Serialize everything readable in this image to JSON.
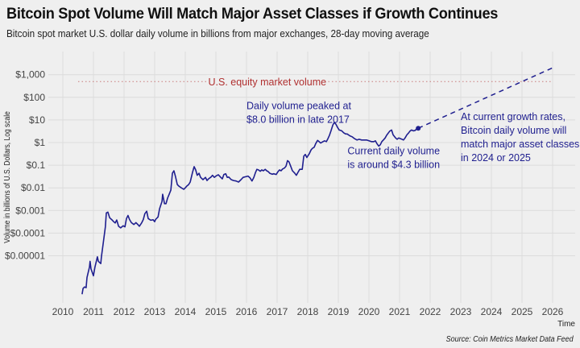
{
  "title": "Bitcoin Spot Volume Will Match Major Asset Classes if Growth Continues",
  "subtitle": "Bitcoin spot market U.S. dollar daily volume in billions from major exchanges, 28-day moving average",
  "source": "Source: Coin Metrics Market Data Feed",
  "colors": {
    "series": "#1f1f8f",
    "equity_line": "#b03030",
    "grid": "#dcdcdc",
    "background": "#efefef"
  },
  "chart_data": {
    "type": "line",
    "title": "Bitcoin Spot Volume Will Match Major Asset Classes if Growth Continues",
    "xlabel": "Time",
    "ylabel": "Volume in billions of U.S. Dollars, Log scale",
    "yscale": "log",
    "xlim": [
      2009.7,
      2026.7
    ],
    "ylim": [
      1e-07,
      5000
    ],
    "grid": true,
    "x_ticks": [
      "2010",
      "2011",
      "2012",
      "2013",
      "2014",
      "2015",
      "2016",
      "2017",
      "2018",
      "2019",
      "2020",
      "2021",
      "2022",
      "2023",
      "2024",
      "2025",
      "2026"
    ],
    "y_ticks": [
      {
        "value": 1000,
        "label": "$1,000"
      },
      {
        "value": 100,
        "label": "$100"
      },
      {
        "value": 10,
        "label": "$10"
      },
      {
        "value": 1,
        "label": "$1"
      },
      {
        "value": 0.1,
        "label": "$0.1"
      },
      {
        "value": 0.01,
        "label": "$0.01"
      },
      {
        "value": 0.001,
        "label": "$0.001"
      },
      {
        "value": 0.0001,
        "label": "$0.0001"
      },
      {
        "value": 1e-05,
        "label": "$0.00001"
      }
    ],
    "series": [
      {
        "name": "Bitcoin daily spot volume (28-day MA)",
        "style": "solid",
        "points": [
          [
            2010.63,
            2e-07
          ],
          [
            2010.66,
            3.6e-07
          ],
          [
            2010.71,
            4.2e-07
          ],
          [
            2010.76,
            3.9e-07
          ],
          [
            2010.79,
            1.1e-06
          ],
          [
            2010.87,
            3.2e-06
          ],
          [
            2010.89,
            5.7e-06
          ],
          [
            2010.92,
            2.6e-06
          ],
          [
            2011.0,
            1.3e-06
          ],
          [
            2011.05,
            3.2e-06
          ],
          [
            2011.13,
            9e-06
          ],
          [
            2011.16,
            5.7e-06
          ],
          [
            2011.24,
            4.5e-06
          ],
          [
            2011.26,
            9e-06
          ],
          [
            2011.32,
            3.7e-05
          ],
          [
            2011.39,
            0.00019
          ],
          [
            2011.42,
            0.00078
          ],
          [
            2011.47,
            0.00085
          ],
          [
            2011.53,
            0.00048
          ],
          [
            2011.61,
            0.00038
          ],
          [
            2011.66,
            0.00032
          ],
          [
            2011.71,
            0.00028
          ],
          [
            2011.76,
            0.00038
          ],
          [
            2011.82,
            0.0002
          ],
          [
            2011.89,
            0.00017
          ],
          [
            2011.97,
            0.00021
          ],
          [
            2012.03,
            0.00019
          ],
          [
            2012.08,
            0.00044
          ],
          [
            2012.13,
            0.0006
          ],
          [
            2012.18,
            0.0004
          ],
          [
            2012.24,
            0.00029
          ],
          [
            2012.32,
            0.00024
          ],
          [
            2012.39,
            0.00029
          ],
          [
            2012.45,
            0.00024
          ],
          [
            2012.5,
            0.0002
          ],
          [
            2012.58,
            0.00029
          ],
          [
            2012.63,
            0.0004
          ],
          [
            2012.68,
            0.00072
          ],
          [
            2012.74,
            0.00093
          ],
          [
            2012.79,
            0.00044
          ],
          [
            2012.87,
            0.00037
          ],
          [
            2012.95,
            0.00039
          ],
          [
            2013.0,
            0.00032
          ],
          [
            2013.03,
            0.0004
          ],
          [
            2013.11,
            0.00052
          ],
          [
            2013.16,
            0.0012
          ],
          [
            2013.24,
            0.0025
          ],
          [
            2013.26,
            0.0052
          ],
          [
            2013.32,
            0.002
          ],
          [
            2013.37,
            0.002
          ],
          [
            2013.42,
            0.0035
          ],
          [
            2013.47,
            0.0051
          ],
          [
            2013.53,
            0.008
          ],
          [
            2013.58,
            0.044
          ],
          [
            2013.63,
            0.057
          ],
          [
            2013.68,
            0.032
          ],
          [
            2013.74,
            0.014
          ],
          [
            2013.79,
            0.012
          ],
          [
            2013.87,
            0.01
          ],
          [
            2013.95,
            0.0086
          ],
          [
            2014.0,
            0.01
          ],
          [
            2014.05,
            0.012
          ],
          [
            2014.11,
            0.014
          ],
          [
            2014.16,
            0.018
          ],
          [
            2014.24,
            0.05
          ],
          [
            2014.29,
            0.086
          ],
          [
            2014.34,
            0.062
          ],
          [
            2014.39,
            0.036
          ],
          [
            2014.45,
            0.044
          ],
          [
            2014.5,
            0.029
          ],
          [
            2014.58,
            0.023
          ],
          [
            2014.66,
            0.029
          ],
          [
            2014.71,
            0.021
          ],
          [
            2014.76,
            0.025
          ],
          [
            2014.84,
            0.03
          ],
          [
            2014.89,
            0.036
          ],
          [
            2014.95,
            0.029
          ],
          [
            2015.0,
            0.033
          ],
          [
            2015.08,
            0.038
          ],
          [
            2015.16,
            0.029
          ],
          [
            2015.21,
            0.025
          ],
          [
            2015.26,
            0.039
          ],
          [
            2015.32,
            0.042
          ],
          [
            2015.37,
            0.029
          ],
          [
            2015.42,
            0.03
          ],
          [
            2015.5,
            0.023
          ],
          [
            2015.58,
            0.021
          ],
          [
            2015.66,
            0.02
          ],
          [
            2015.74,
            0.018
          ],
          [
            2015.82,
            0.023
          ],
          [
            2015.89,
            0.029
          ],
          [
            2015.97,
            0.031
          ],
          [
            2016.05,
            0.033
          ],
          [
            2016.11,
            0.028
          ],
          [
            2016.18,
            0.02
          ],
          [
            2016.24,
            0.029
          ],
          [
            2016.29,
            0.046
          ],
          [
            2016.34,
            0.066
          ],
          [
            2016.39,
            0.062
          ],
          [
            2016.45,
            0.054
          ],
          [
            2016.5,
            0.062
          ],
          [
            2016.55,
            0.057
          ],
          [
            2016.61,
            0.066
          ],
          [
            2016.66,
            0.057
          ],
          [
            2016.71,
            0.052
          ],
          [
            2016.76,
            0.044
          ],
          [
            2016.84,
            0.04
          ],
          [
            2016.89,
            0.042
          ],
          [
            2016.97,
            0.039
          ],
          [
            2017.03,
            0.052
          ],
          [
            2017.08,
            0.062
          ],
          [
            2017.13,
            0.057
          ],
          [
            2017.18,
            0.068
          ],
          [
            2017.24,
            0.075
          ],
          [
            2017.29,
            0.09
          ],
          [
            2017.34,
            0.16
          ],
          [
            2017.39,
            0.14
          ],
          [
            2017.45,
            0.086
          ],
          [
            2017.5,
            0.057
          ],
          [
            2017.58,
            0.044
          ],
          [
            2017.63,
            0.036
          ],
          [
            2017.68,
            0.048
          ],
          [
            2017.74,
            0.066
          ],
          [
            2017.82,
            0.066
          ],
          [
            2017.87,
            0.25
          ],
          [
            2017.92,
            0.3
          ],
          [
            2017.97,
            0.22
          ],
          [
            2018.05,
            0.32
          ],
          [
            2018.11,
            0.48
          ],
          [
            2018.16,
            0.57
          ],
          [
            2018.21,
            0.62
          ],
          [
            2018.26,
            0.9
          ],
          [
            2018.32,
            1.25
          ],
          [
            2018.37,
            1.1
          ],
          [
            2018.42,
            0.95
          ],
          [
            2018.5,
            1.1
          ],
          [
            2018.55,
            1.2
          ],
          [
            2018.61,
            1.1
          ],
          [
            2018.66,
            1.5
          ],
          [
            2018.71,
            2.1
          ],
          [
            2018.76,
            3.3
          ],
          [
            2018.82,
            6.0
          ],
          [
            2018.87,
            7.8
          ],
          [
            2018.92,
            6.5
          ],
          [
            2018.97,
            4.8
          ],
          [
            2019.03,
            3.6
          ],
          [
            2019.11,
            3.3
          ],
          [
            2019.18,
            2.7
          ],
          [
            2019.24,
            2.4
          ],
          [
            2019.29,
            2.4
          ],
          [
            2019.37,
            2.0
          ],
          [
            2019.45,
            1.8
          ],
          [
            2019.53,
            1.5
          ],
          [
            2019.61,
            1.3
          ],
          [
            2019.68,
            1.4
          ],
          [
            2019.76,
            1.3
          ],
          [
            2019.84,
            1.3
          ],
          [
            2019.92,
            1.3
          ],
          [
            2020.0,
            1.2
          ],
          [
            2020.08,
            1.1
          ],
          [
            2020.16,
            1.1
          ],
          [
            2020.21,
            1.2
          ],
          [
            2020.26,
            0.9
          ],
          [
            2020.32,
            0.7
          ],
          [
            2020.37,
            0.8
          ],
          [
            2020.42,
            1.1
          ],
          [
            2020.47,
            1.3
          ],
          [
            2020.53,
            1.6
          ],
          [
            2020.58,
            2.1
          ],
          [
            2020.63,
            2.6
          ],
          [
            2020.68,
            3.2
          ],
          [
            2020.74,
            3.6
          ],
          [
            2020.79,
            2.2
          ],
          [
            2020.87,
            1.6
          ],
          [
            2020.92,
            1.4
          ],
          [
            2020.97,
            1.6
          ],
          [
            2021.03,
            1.5
          ],
          [
            2021.08,
            1.4
          ],
          [
            2021.13,
            1.3
          ],
          [
            2021.18,
            1.6
          ],
          [
            2021.24,
            2.2
          ],
          [
            2021.29,
            2.6
          ],
          [
            2021.34,
            3.2
          ],
          [
            2021.39,
            3.6
          ],
          [
            2021.45,
            3.3
          ],
          [
            2021.5,
            3.4
          ],
          [
            2021.55,
            3.9
          ],
          [
            2021.61,
            4.3
          ]
        ]
      },
      {
        "name": "Projection at current growth rate",
        "style": "dashed",
        "points": [
          [
            2021.61,
            4.3
          ],
          [
            2026.0,
            2000
          ]
        ]
      },
      {
        "name": "U.S. equity market volume",
        "style": "dotted",
        "points": [
          [
            2010.5,
            500
          ],
          [
            2026.0,
            500
          ]
        ]
      }
    ],
    "annotations": [
      {
        "text": [
          "U.S. equity market volume"
        ],
        "x": 2014.75,
        "y": 500,
        "color": "#b03030"
      },
      {
        "text": [
          "Daily volume peaked at",
          "$8.0 billion in late 2017"
        ],
        "x": 2016.0,
        "y": 30,
        "color": "#1f1f8f"
      },
      {
        "text": [
          "Current daily volume",
          "is around $4.3 billion"
        ],
        "x": 2019.3,
        "y": 0.3,
        "color": "#1f1f8f"
      },
      {
        "text": [
          "At current growth rates,",
          "Bitcoin daily volume will",
          "match major asset classes",
          "in 2024 or 2025"
        ],
        "x": 2023.0,
        "y": 10,
        "color": "#1f1f8f"
      }
    ]
  }
}
